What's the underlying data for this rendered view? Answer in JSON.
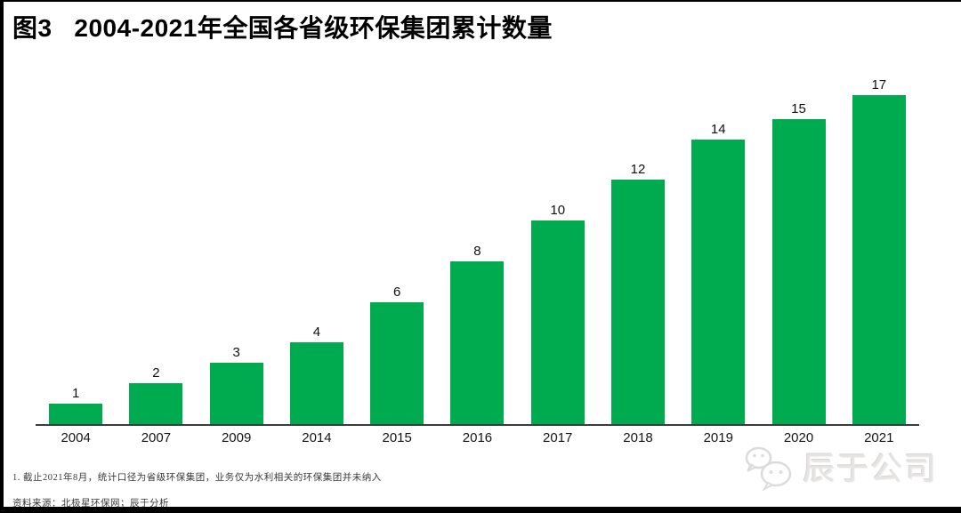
{
  "header": {
    "title": "图3   2004-2021年全国各省级环保集团累计数量"
  },
  "chart_data": {
    "type": "bar",
    "title": "图3 2004-2021年全国各省级环保集团累计数量",
    "categories": [
      "2004",
      "2007",
      "2009",
      "2014",
      "2015",
      "2016",
      "2017",
      "2018",
      "2019",
      "2020",
      "2021"
    ],
    "values": [
      1,
      2,
      3,
      4,
      6,
      8,
      10,
      12,
      14,
      15,
      17
    ],
    "xlabel": "",
    "ylabel": "",
    "ylim": [
      0,
      17
    ],
    "grid": false,
    "legend_position": "none",
    "data_labels": true,
    "bar_color": "#00ab4f",
    "axis_color": "#3c3c3c"
  },
  "footnotes": {
    "note": "1. 截止2021年8月，统计口径为省级环保集团，业务仅为水利相关的环保集团并未纳入",
    "source": "资料来源：北极星环保网；辰于分析"
  },
  "watermark": {
    "icon": "wechat-icon",
    "text": "辰于公司"
  },
  "colors": {
    "bar": "#00ab4f",
    "axis": "#3c3c3c",
    "frame": "#000000",
    "watermark": "#e6e4e3"
  }
}
